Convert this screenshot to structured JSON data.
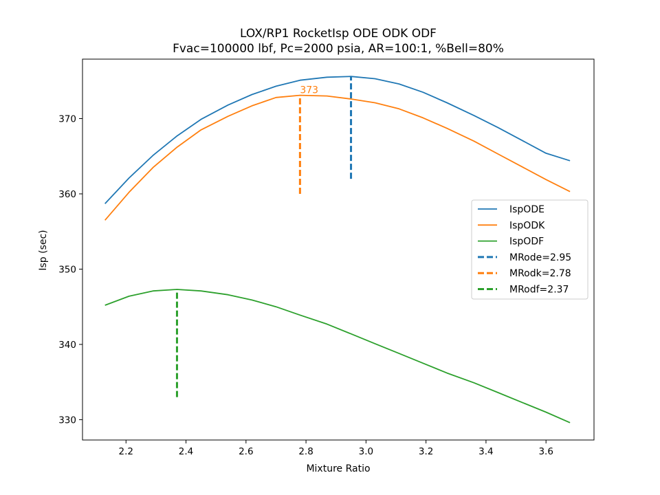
{
  "chart_data": {
    "type": "line",
    "title": "LOX/RP1 RocketIsp ODE ODK ODF",
    "subtitle": "Fvac=100000 lbf, Pc=2000 psia, AR=100:1, %Bell=80%",
    "xlabel": "Mixture Ratio",
    "ylabel": "Isp (sec)",
    "xlim": [
      2.055,
      3.76
    ],
    "ylim": [
      327.3,
      377.9
    ],
    "xticks": [
      "2.2",
      "2.4",
      "2.6",
      "2.8",
      "3.0",
      "3.2",
      "3.4",
      "3.6"
    ],
    "yticks": [
      "330",
      "340",
      "350",
      "360",
      "370"
    ],
    "grid": false,
    "legend_position": "center-right",
    "x": [
      2.13,
      2.21,
      2.29,
      2.37,
      2.45,
      2.54,
      2.62,
      2.7,
      2.78,
      2.87,
      2.95,
      3.03,
      3.11,
      3.19,
      3.27,
      3.36,
      3.44,
      3.52,
      3.6,
      3.68
    ],
    "series": [
      {
        "name": "IspODE",
        "color": "#1f77b4",
        "values": [
          358.7,
          362.1,
          365.1,
          367.7,
          369.9,
          371.8,
          373.2,
          374.3,
          375.1,
          375.5,
          375.6,
          375.3,
          374.6,
          373.5,
          372.1,
          370.4,
          368.8,
          367.1,
          365.4,
          364.4
        ]
      },
      {
        "name": "IspODK",
        "color": "#ff7f0e",
        "values": [
          356.5,
          360.2,
          363.5,
          366.2,
          368.5,
          370.3,
          371.7,
          372.8,
          373.1,
          373.0,
          372.6,
          372.1,
          371.3,
          370.1,
          368.7,
          367.0,
          365.3,
          363.6,
          361.9,
          360.3
        ]
      },
      {
        "name": "IspODF",
        "color": "#2ca02c",
        "values": [
          345.2,
          346.4,
          347.1,
          347.3,
          347.1,
          346.6,
          345.9,
          345.0,
          343.9,
          342.7,
          341.4,
          340.1,
          338.8,
          337.5,
          336.2,
          334.9,
          333.6,
          332.3,
          331.0,
          329.6
        ]
      }
    ],
    "markers": [
      {
        "name": "MRode=2.95",
        "color": "#1f77b4",
        "x": 2.95,
        "y0": 362.0,
        "y1": 375.6
      },
      {
        "name": "MRodk=2.78",
        "color": "#ff7f0e",
        "x": 2.78,
        "y0": 360.0,
        "y1": 373.1
      },
      {
        "name": "MRodf=2.37",
        "color": "#2ca02c",
        "x": 2.37,
        "y0": 333.0,
        "y1": 347.3
      }
    ],
    "annotations": [
      {
        "text": "373",
        "color": "#ff7f0e",
        "x": 2.78,
        "y": 373.1
      }
    ]
  }
}
